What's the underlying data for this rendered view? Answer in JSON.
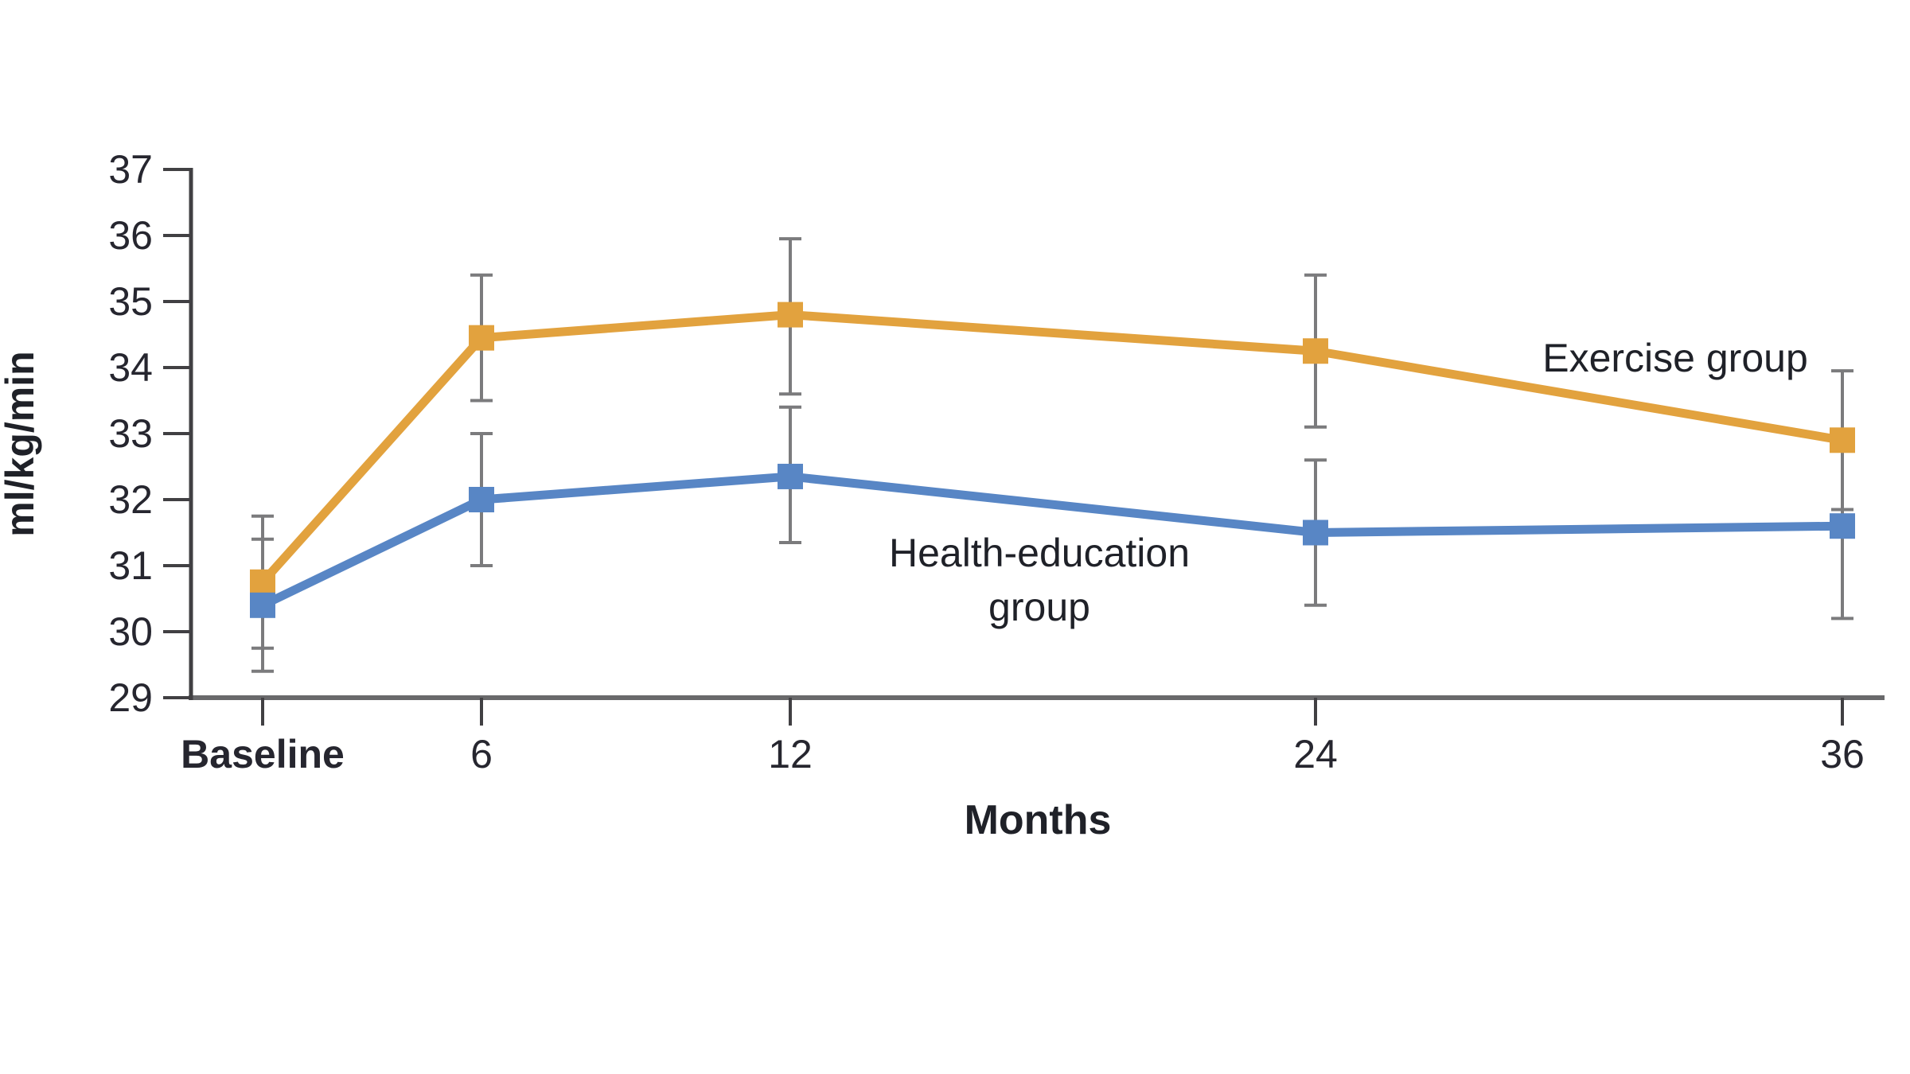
{
  "figure": {
    "background": "#ffffff"
  },
  "chart_data": {
    "type": "line",
    "title": "",
    "xlabel": "Months",
    "ylabel": "ml/kg/min",
    "x_tick_labels": [
      "Baseline",
      "6",
      "12",
      "24",
      "36"
    ],
    "x_months": [
      0,
      6,
      12,
      24,
      36
    ],
    "ylim": [
      29,
      37
    ],
    "y_ticks": [
      37,
      36,
      35,
      34,
      33,
      32,
      31,
      30,
      29
    ],
    "grid": false,
    "legend_position": "inline-annotations",
    "error_bars": true,
    "series": [
      {
        "name": "Exercise group",
        "color": "#E2A23E",
        "marker": "square",
        "values": [
          30.75,
          34.45,
          34.8,
          34.25,
          32.9
        ],
        "error_low": [
          29.75,
          33.5,
          33.6,
          33.1,
          31.85
        ],
        "error_high": [
          31.75,
          35.4,
          35.95,
          35.4,
          33.95
        ]
      },
      {
        "name": "Health-education group",
        "color": "#5886C5",
        "marker": "square",
        "values": [
          30.4,
          32.0,
          32.35,
          31.5,
          31.6
        ],
        "error_low": [
          29.4,
          31.0,
          31.35,
          30.4,
          30.2
        ],
        "error_high": [
          31.4,
          33.0,
          33.4,
          32.6,
          32.95
        ]
      }
    ],
    "annotations": {
      "exercise": "Exercise group",
      "health_line1": "Health-education",
      "health_line2": "group"
    },
    "colors": {
      "error_bar": "#7B7B7D",
      "y_axis": "#414043",
      "x_axis": "#69696B",
      "tick": "#414043",
      "tick_text": "#26262F",
      "label_text": "#1F2128"
    }
  }
}
